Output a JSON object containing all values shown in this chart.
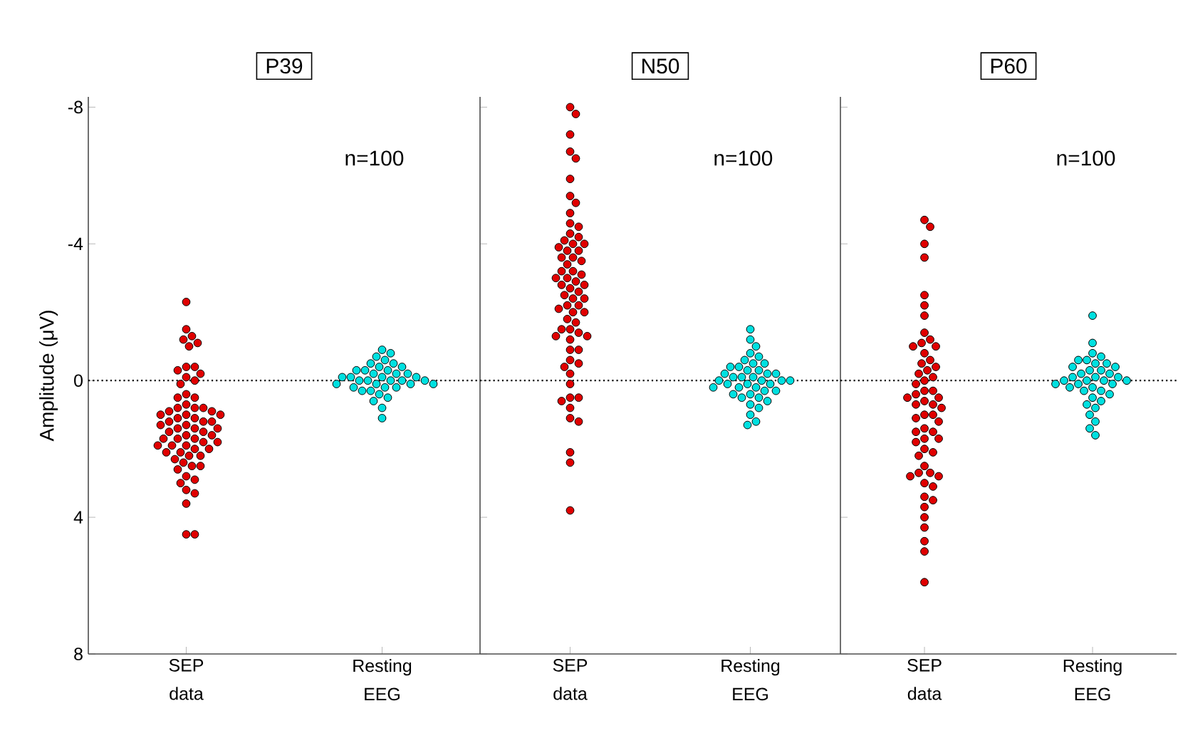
{
  "chart_data": [
    {
      "type": "scatter",
      "title": "P39",
      "ylabel": "Amplitude (μV)",
      "categories": [
        "SEP data",
        "Resting EEG"
      ],
      "ylim": [
        8,
        -8.3
      ],
      "yticks": [
        -8,
        -4,
        0,
        4,
        8
      ],
      "marker": "circle",
      "grid": false,
      "annotations": [
        "n=100"
      ],
      "ref_lines": [
        {
          "axis": "y",
          "value": 0,
          "line_style": "dotted",
          "color": "#000000"
        }
      ],
      "series": [
        {
          "color": "#e00000",
          "x": [
            "SEP data",
            "SEP data",
            "SEP data",
            "SEP data",
            "SEP data",
            "SEP data",
            "SEP data",
            "SEP data",
            "SEP data",
            "SEP data",
            "SEP data",
            "SEP data",
            "SEP data",
            "SEP data",
            "SEP data",
            "SEP data",
            "SEP data",
            "SEP data",
            "SEP data",
            "SEP data",
            "SEP data",
            "SEP data",
            "SEP data",
            "SEP data",
            "SEP data",
            "SEP data",
            "SEP data",
            "SEP data",
            "SEP data",
            "SEP data",
            "SEP data",
            "SEP data",
            "SEP data",
            "SEP data",
            "SEP data",
            "SEP data",
            "SEP data",
            "SEP data",
            "SEP data",
            "SEP data",
            "SEP data",
            "SEP data",
            "SEP data",
            "SEP data",
            "SEP data",
            "SEP data",
            "SEP data",
            "SEP data",
            "SEP data",
            "SEP data",
            "SEP data",
            "SEP data",
            "SEP data",
            "SEP data",
            "SEP data",
            "SEP data",
            "SEP data",
            "SEP data",
            "SEP data",
            "SEP data",
            "SEP data",
            "SEP data",
            "SEP data",
            "SEP data",
            "SEP data",
            "SEP data"
          ],
          "values": [
            -2.3,
            -1.5,
            -1.3,
            -1.2,
            -1.1,
            -1.0,
            -0.4,
            -0.4,
            -0.3,
            -0.2,
            -0.1,
            0.0,
            0.1,
            0.4,
            0.5,
            0.5,
            0.7,
            0.8,
            0.8,
            0.9,
            1.0,
            1.0,
            1.1,
            1.2,
            1.2,
            1.3,
            1.4,
            1.4,
            1.5,
            1.6,
            1.7,
            1.7,
            1.8,
            1.9,
            1.9,
            2.0,
            2.1,
            2.1,
            2.2,
            2.3,
            2.4,
            2.5,
            2.6,
            2.8,
            2.9,
            3.0,
            3.2,
            3.3,
            3.6,
            4.5,
            4.5,
            0.8,
            1.0,
            1.2,
            1.3,
            1.5,
            1.6,
            1.7,
            1.8,
            1.9,
            2.0,
            2.2,
            2.5,
            1.1,
            0.9,
            1.4
          ]
        },
        {
          "color": "#00e0e0",
          "x": [
            "Resting EEG",
            "Resting EEG",
            "Resting EEG",
            "Resting EEG",
            "Resting EEG",
            "Resting EEG",
            "Resting EEG",
            "Resting EEG",
            "Resting EEG",
            "Resting EEG",
            "Resting EEG",
            "Resting EEG",
            "Resting EEG",
            "Resting EEG",
            "Resting EEG",
            "Resting EEG",
            "Resting EEG",
            "Resting EEG",
            "Resting EEG",
            "Resting EEG",
            "Resting EEG",
            "Resting EEG",
            "Resting EEG",
            "Resting EEG",
            "Resting EEG",
            "Resting EEG",
            "Resting EEG",
            "Resting EEG",
            "Resting EEG",
            "Resting EEG",
            "Resting EEG",
            "Resting EEG",
            "Resting EEG",
            "Resting EEG",
            "Resting EEG",
            "Resting EEG",
            "Resting EEG"
          ],
          "values": [
            -0.9,
            -0.8,
            -0.7,
            -0.6,
            -0.5,
            -0.5,
            -0.4,
            -0.4,
            -0.3,
            -0.3,
            -0.3,
            -0.2,
            -0.2,
            -0.2,
            -0.1,
            -0.1,
            -0.1,
            -0.1,
            0.0,
            0.0,
            0.0,
            0.0,
            0.0,
            0.1,
            0.1,
            0.1,
            0.1,
            0.2,
            0.2,
            0.2,
            0.3,
            0.3,
            0.4,
            0.5,
            0.6,
            0.8,
            1.1
          ]
        }
      ]
    },
    {
      "type": "scatter",
      "title": "N50",
      "categories": [
        "SEP data",
        "Resting EEG"
      ],
      "ylim": [
        8,
        -8.3
      ],
      "yticks": [
        -8,
        -4,
        0,
        4,
        8
      ],
      "tick_labels": "x",
      "marker": "circle",
      "grid": false,
      "annotations": [
        "n=100"
      ],
      "ref_lines": [
        {
          "axis": "y",
          "value": 0,
          "line_style": "dotted",
          "color": "#000000"
        }
      ],
      "series": [
        {
          "color": "#e00000",
          "x": [
            "SEP data",
            "SEP data",
            "SEP data",
            "SEP data",
            "SEP data",
            "SEP data",
            "SEP data",
            "SEP data",
            "SEP data",
            "SEP data",
            "SEP data",
            "SEP data",
            "SEP data",
            "SEP data",
            "SEP data",
            "SEP data",
            "SEP data",
            "SEP data",
            "SEP data",
            "SEP data",
            "SEP data",
            "SEP data",
            "SEP data",
            "SEP data",
            "SEP data",
            "SEP data",
            "SEP data",
            "SEP data",
            "SEP data",
            "SEP data",
            "SEP data",
            "SEP data",
            "SEP data",
            "SEP data",
            "SEP data",
            "SEP data",
            "SEP data",
            "SEP data",
            "SEP data",
            "SEP data",
            "SEP data",
            "SEP data",
            "SEP data",
            "SEP data",
            "SEP data",
            "SEP data",
            "SEP data",
            "SEP data",
            "SEP data",
            "SEP data",
            "SEP data",
            "SEP data",
            "SEP data",
            "SEP data",
            "SEP data",
            "SEP data",
            "SEP data",
            "SEP data",
            "SEP data",
            "SEP data",
            "SEP data",
            "SEP data",
            "SEP data",
            "SEP data",
            "SEP data"
          ],
          "values": [
            -8.0,
            -7.8,
            -7.2,
            -6.7,
            -6.5,
            -5.9,
            -5.4,
            -5.2,
            -4.9,
            -4.6,
            -4.5,
            -4.3,
            -4.2,
            -4.0,
            -3.9,
            -3.8,
            -3.6,
            -3.6,
            -3.4,
            -3.2,
            -3.1,
            -3.0,
            -2.9,
            -2.8,
            -2.7,
            -2.5,
            -2.4,
            -2.2,
            -2.1,
            -2.0,
            -1.7,
            -1.5,
            -1.4,
            -1.3,
            -1.3,
            -0.9,
            -0.9,
            -0.6,
            -0.5,
            -0.4,
            -0.2,
            0.1,
            0.5,
            0.6,
            0.8,
            1.1,
            1.2,
            2.1,
            2.4,
            3.8,
            -4.1,
            -3.5,
            -3.0,
            -2.8,
            -2.4,
            -2.0,
            -1.5,
            -4.0,
            -3.8,
            -2.6,
            -1.8,
            -1.2,
            0.5,
            -3.2,
            -2.2
          ]
        },
        {
          "color": "#00e0e0",
          "x": [
            "Resting EEG",
            "Resting EEG",
            "Resting EEG",
            "Resting EEG",
            "Resting EEG",
            "Resting EEG",
            "Resting EEG",
            "Resting EEG",
            "Resting EEG",
            "Resting EEG",
            "Resting EEG",
            "Resting EEG",
            "Resting EEG",
            "Resting EEG",
            "Resting EEG",
            "Resting EEG",
            "Resting EEG",
            "Resting EEG",
            "Resting EEG",
            "Resting EEG",
            "Resting EEG",
            "Resting EEG",
            "Resting EEG",
            "Resting EEG",
            "Resting EEG",
            "Resting EEG",
            "Resting EEG",
            "Resting EEG",
            "Resting EEG",
            "Resting EEG",
            "Resting EEG",
            "Resting EEG",
            "Resting EEG",
            "Resting EEG",
            "Resting EEG",
            "Resting EEG",
            "Resting EEG",
            "Resting EEG",
            "Resting EEG",
            "Resting EEG"
          ],
          "values": [
            -1.5,
            -1.2,
            -1.0,
            -0.8,
            -0.7,
            -0.6,
            -0.5,
            -0.5,
            -0.4,
            -0.4,
            -0.3,
            -0.3,
            -0.2,
            -0.2,
            -0.2,
            -0.1,
            -0.1,
            -0.1,
            0.0,
            0.0,
            0.0,
            0.0,
            0.1,
            0.1,
            0.1,
            0.2,
            0.2,
            0.2,
            0.3,
            0.3,
            0.4,
            0.4,
            0.5,
            0.5,
            0.6,
            0.7,
            0.8,
            1.0,
            1.2,
            1.3
          ]
        }
      ]
    },
    {
      "type": "scatter",
      "title": "P60",
      "categories": [
        "SEP data",
        "Resting EEG"
      ],
      "ylim": [
        8,
        -8.3
      ],
      "yticks": [
        -8,
        -4,
        0,
        4,
        8
      ],
      "tick_labels": "x",
      "marker": "circle",
      "grid": false,
      "annotations": [
        "n=100"
      ],
      "ref_lines": [
        {
          "axis": "y",
          "value": 0,
          "line_style": "dotted",
          "color": "#000000"
        }
      ],
      "series": [
        {
          "color": "#e00000",
          "x": [
            "SEP data",
            "SEP data",
            "SEP data",
            "SEP data",
            "SEP data",
            "SEP data",
            "SEP data",
            "SEP data",
            "SEP data",
            "SEP data",
            "SEP data",
            "SEP data",
            "SEP data",
            "SEP data",
            "SEP data",
            "SEP data",
            "SEP data",
            "SEP data",
            "SEP data",
            "SEP data",
            "SEP data",
            "SEP data",
            "SEP data",
            "SEP data",
            "SEP data",
            "SEP data",
            "SEP data",
            "SEP data",
            "SEP data",
            "SEP data",
            "SEP data",
            "SEP data",
            "SEP data",
            "SEP data",
            "SEP data",
            "SEP data",
            "SEP data",
            "SEP data",
            "SEP data",
            "SEP data",
            "SEP data",
            "SEP data",
            "SEP data",
            "SEP data",
            "SEP data",
            "SEP data",
            "SEP data",
            "SEP data",
            "SEP data",
            "SEP data",
            "SEP data",
            "SEP data",
            "SEP data",
            "SEP data",
            "SEP data",
            "SEP data",
            "SEP data",
            "SEP data"
          ],
          "values": [
            -4.7,
            -4.5,
            -4.0,
            -3.6,
            -2.5,
            -2.2,
            -1.9,
            -1.4,
            -1.2,
            -1.1,
            -1.0,
            -0.8,
            -0.6,
            -0.4,
            -0.2,
            -0.1,
            0.1,
            0.3,
            0.4,
            0.5,
            0.6,
            0.7,
            0.8,
            1.0,
            1.1,
            1.4,
            1.5,
            1.7,
            1.8,
            2.0,
            2.2,
            2.5,
            2.7,
            2.8,
            3.0,
            3.1,
            3.5,
            3.7,
            4.0,
            4.3,
            4.7,
            5.0,
            5.9,
            0.3,
            0.5,
            0.7,
            1.0,
            1.2,
            1.5,
            1.7,
            2.1,
            2.7,
            2.8,
            -0.3,
            -0.5,
            -1.0,
            0.0,
            3.4
          ]
        },
        {
          "color": "#00e0e0",
          "x": [
            "Resting EEG",
            "Resting EEG",
            "Resting EEG",
            "Resting EEG",
            "Resting EEG",
            "Resting EEG",
            "Resting EEG",
            "Resting EEG",
            "Resting EEG",
            "Resting EEG",
            "Resting EEG",
            "Resting EEG",
            "Resting EEG",
            "Resting EEG",
            "Resting EEG",
            "Resting EEG",
            "Resting EEG",
            "Resting EEG",
            "Resting EEG",
            "Resting EEG",
            "Resting EEG",
            "Resting EEG",
            "Resting EEG",
            "Resting EEG",
            "Resting EEG",
            "Resting EEG",
            "Resting EEG",
            "Resting EEG",
            "Resting EEG",
            "Resting EEG",
            "Resting EEG",
            "Resting EEG",
            "Resting EEG",
            "Resting EEG",
            "Resting EEG",
            "Resting EEG",
            "Resting EEG"
          ],
          "values": [
            -1.9,
            -1.1,
            -0.8,
            -0.7,
            -0.6,
            -0.6,
            -0.5,
            -0.5,
            -0.4,
            -0.4,
            -0.3,
            -0.3,
            -0.2,
            -0.2,
            -0.1,
            -0.1,
            -0.1,
            0.0,
            0.0,
            0.0,
            0.0,
            0.1,
            0.1,
            0.1,
            0.2,
            0.2,
            0.3,
            0.3,
            0.4,
            0.5,
            0.6,
            0.7,
            0.8,
            1.0,
            1.2,
            1.4,
            1.6
          ]
        }
      ]
    }
  ]
}
